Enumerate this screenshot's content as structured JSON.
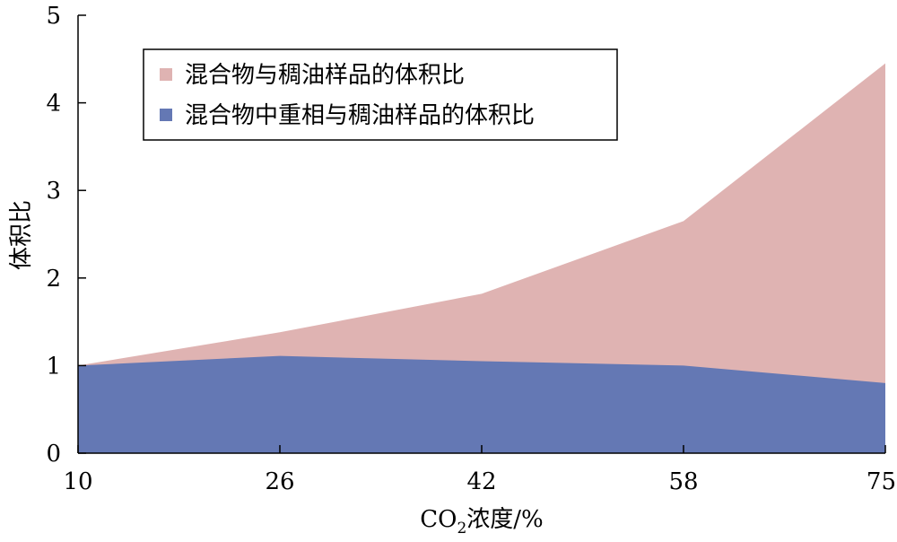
{
  "chart_data": {
    "type": "area",
    "categories": [
      "10",
      "26",
      "42",
      "58",
      "75"
    ],
    "series": [
      {
        "name": "混合物与稠油样品的体积比",
        "values": [
          1.0,
          1.38,
          1.82,
          2.65,
          4.45
        ],
        "color": "#dfb3b2"
      },
      {
        "name": "混合物中重相与稠油样品的体积比",
        "values": [
          1.0,
          1.11,
          1.05,
          1.0,
          0.8
        ],
        "color": "#6478b4"
      }
    ],
    "xlabel": {
      "prefix": "CO",
      "subscript": "2",
      "suffix": "浓度/%"
    },
    "ylabel": "体积比",
    "ylim": [
      0,
      5
    ],
    "yticks": [
      "0",
      "1",
      "2",
      "3",
      "4",
      "5"
    ],
    "grid": false,
    "legend_position": "top-left"
  }
}
